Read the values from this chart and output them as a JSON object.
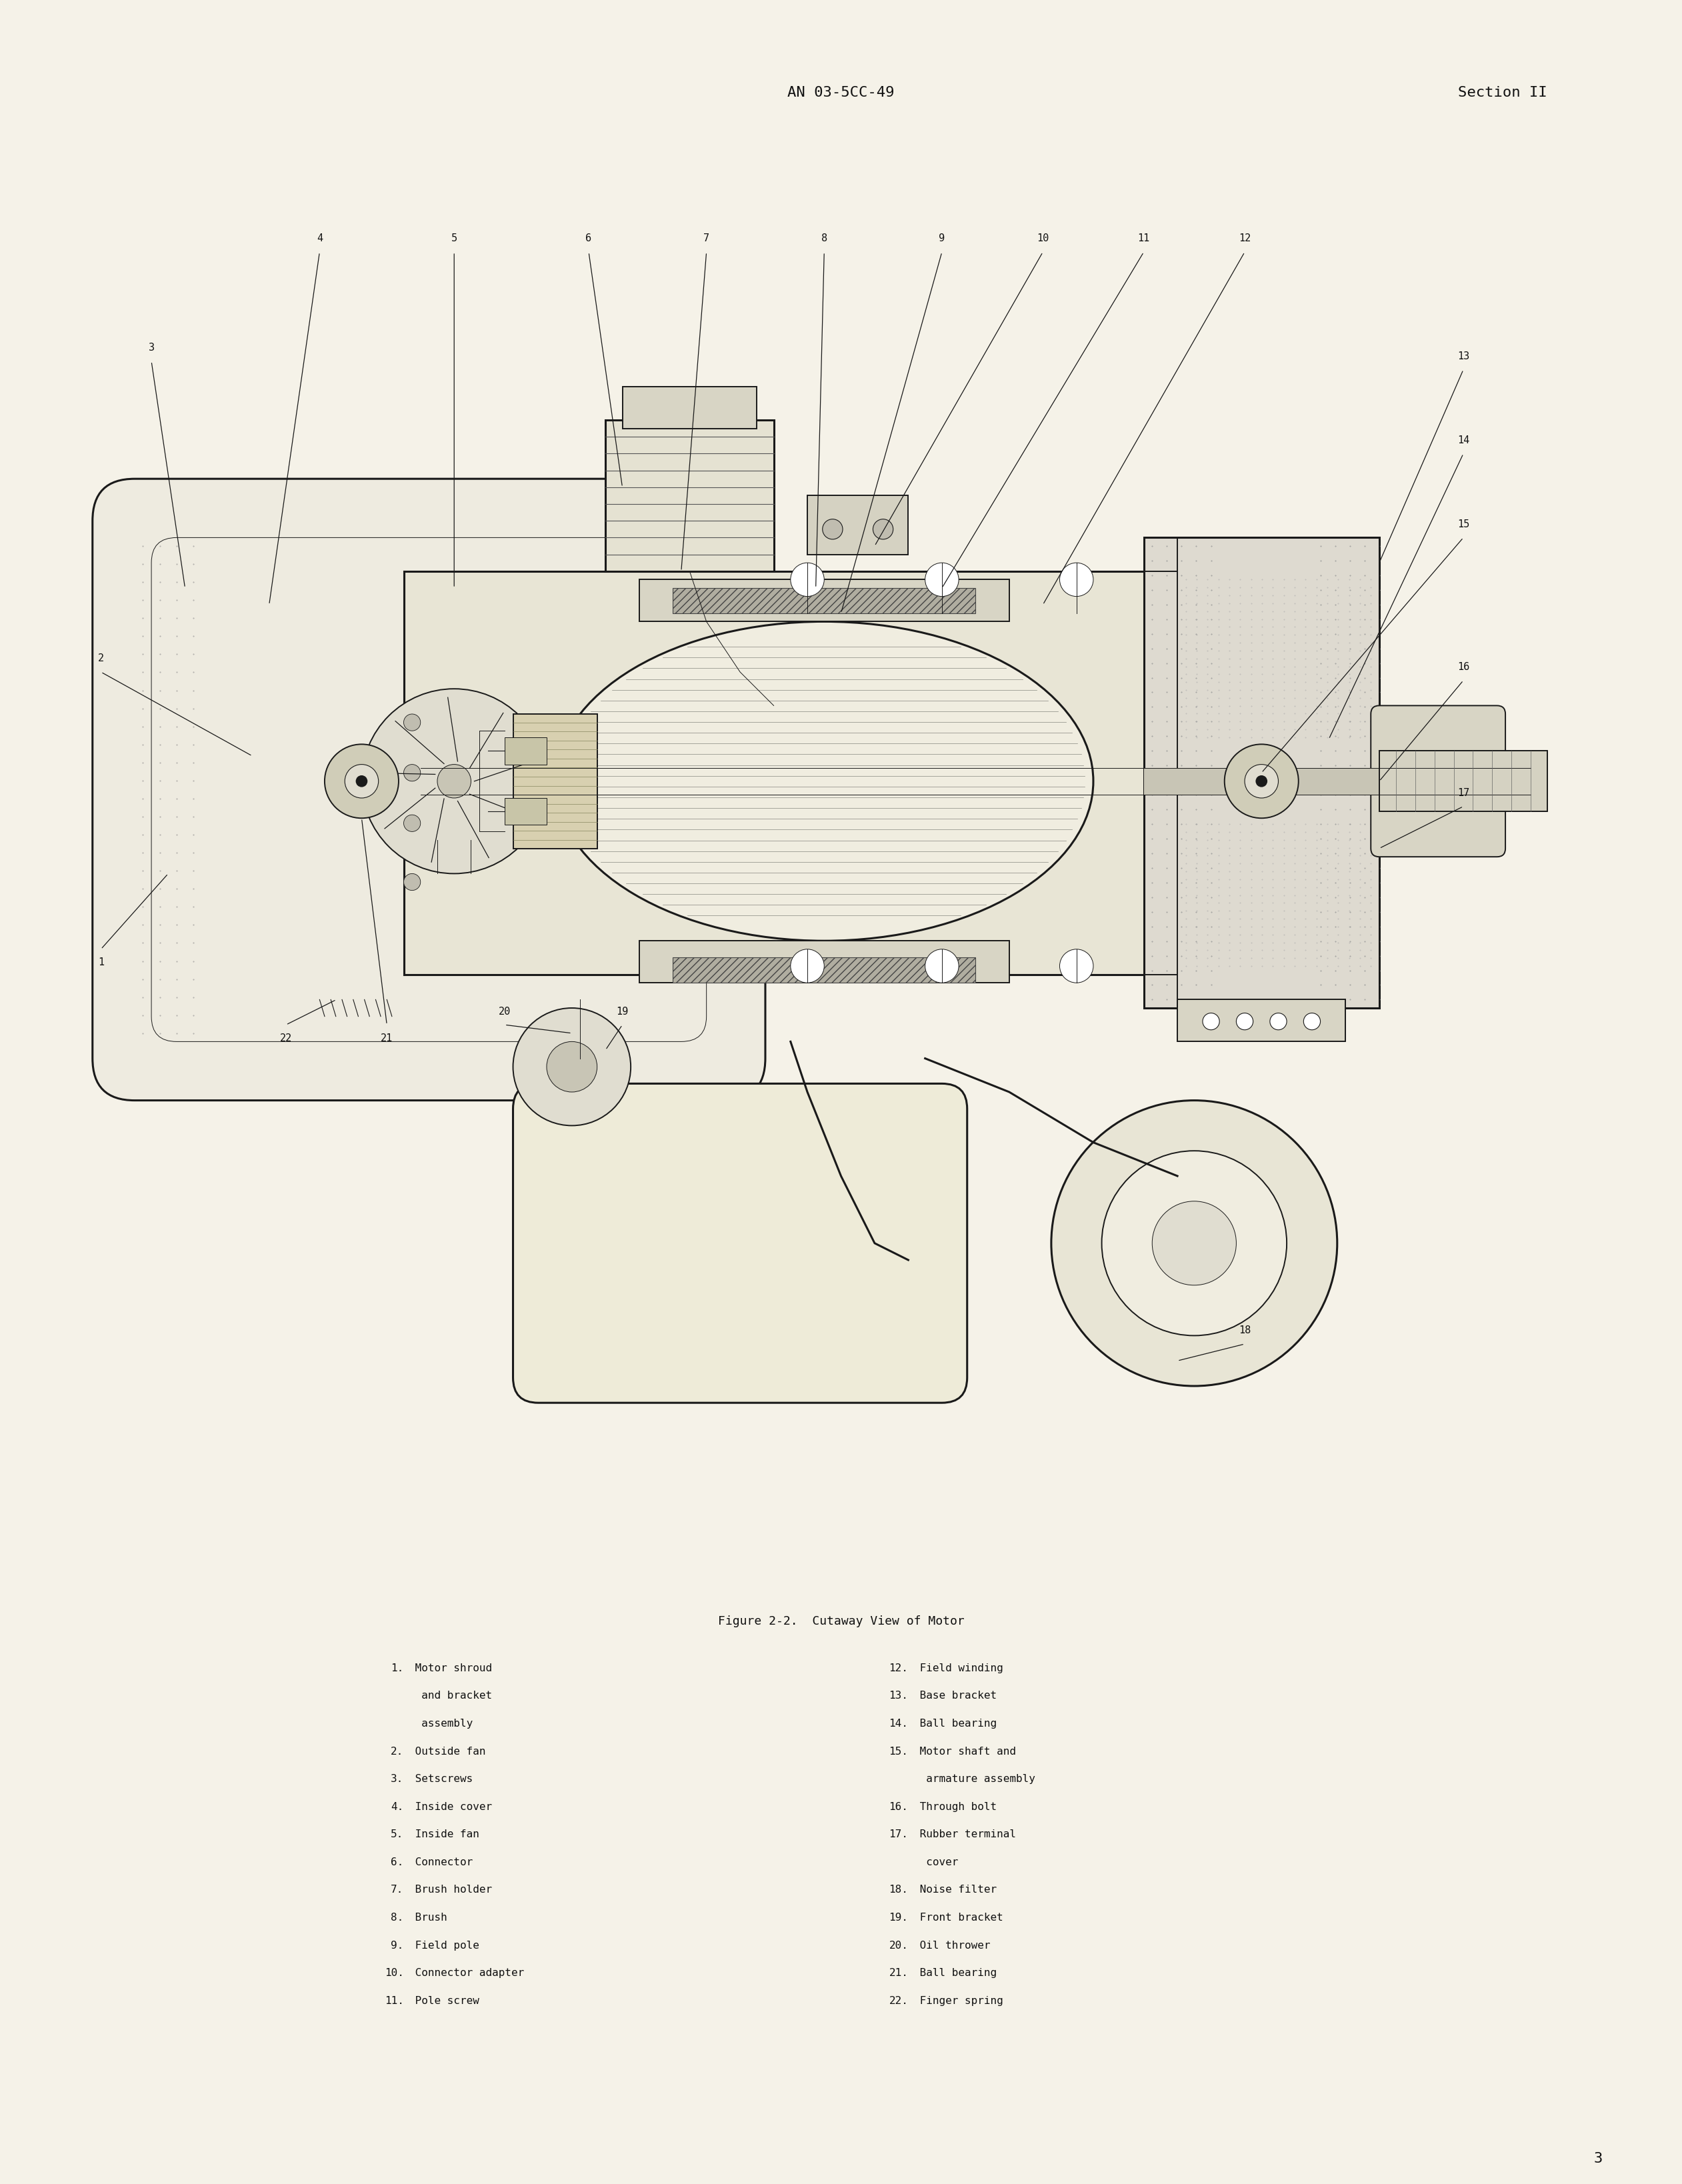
{
  "background_color": "#F5F2E8",
  "text_color": "#111111",
  "header_center": "AN 03-5CC-49",
  "header_right": "Section II",
  "page_number": "3",
  "figure_caption": "Figure 2-2.  Cutaway View of Motor",
  "legend_left": [
    [
      "1.",
      "Motor shroud"
    ],
    [
      "",
      " and bracket"
    ],
    [
      "",
      " assembly"
    ],
    [
      "2.",
      "Outside fan"
    ],
    [
      "3.",
      "Setscrews"
    ],
    [
      "4.",
      "Inside cover"
    ],
    [
      "5.",
      "Inside fan"
    ],
    [
      "6.",
      "Connector"
    ],
    [
      "7.",
      "Brush holder"
    ],
    [
      "8.",
      "Brush"
    ],
    [
      "9.",
      "Field pole"
    ],
    [
      "10.",
      "Connector adapter"
    ],
    [
      "11.",
      "Pole screw"
    ]
  ],
  "legend_right": [
    [
      "12.",
      "Field winding"
    ],
    [
      "13.",
      "Base bracket"
    ],
    [
      "14.",
      "Ball bearing"
    ],
    [
      "15.",
      "Motor shaft and"
    ],
    [
      "",
      " armature assembly"
    ],
    [
      "16.",
      "Through bolt"
    ],
    [
      "17.",
      "Rubber terminal"
    ],
    [
      "",
      " cover"
    ],
    [
      "18.",
      "Noise filter"
    ],
    [
      "19.",
      "Front bracket"
    ],
    [
      "20.",
      "Oil thrower"
    ],
    [
      "21.",
      "Ball bearing"
    ],
    [
      "22.",
      "Finger spring"
    ]
  ]
}
